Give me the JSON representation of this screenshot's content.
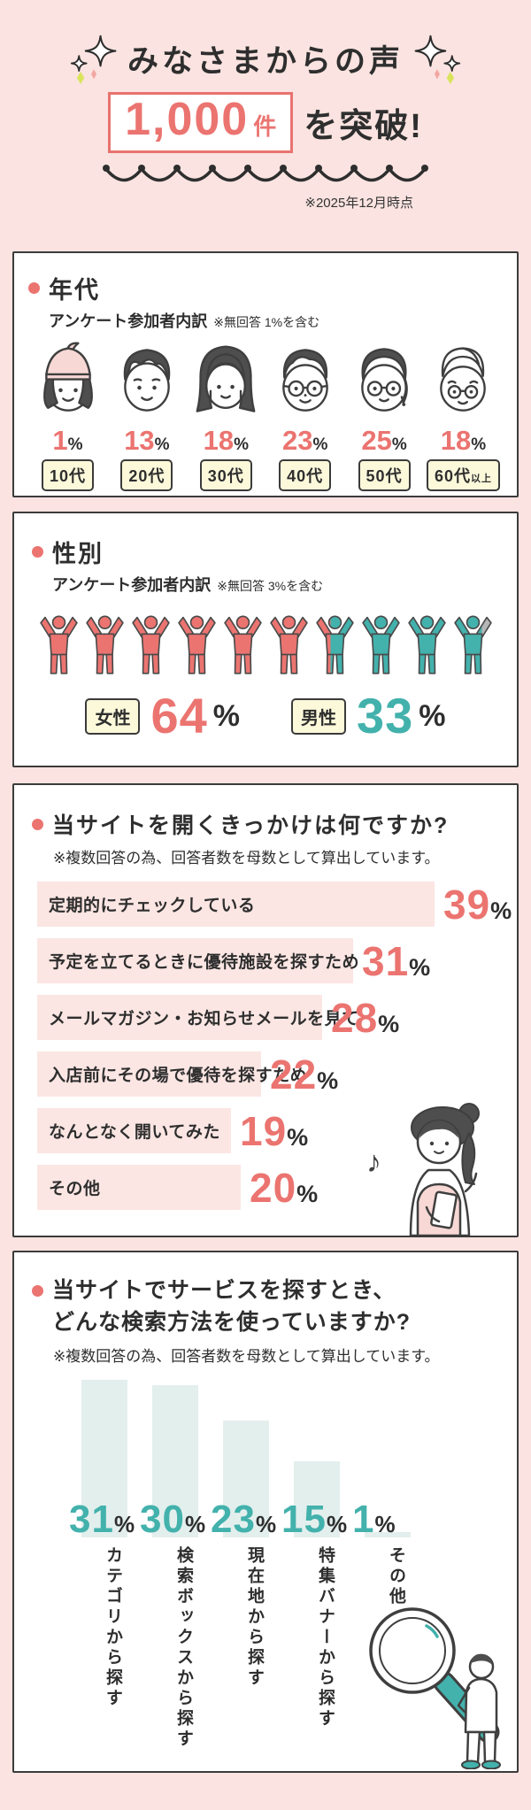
{
  "page": {
    "bg": "#FAE3E0",
    "note_date": "※2025年12月時点"
  },
  "colors": {
    "accent_red": "#EB7470",
    "accent_teal": "#43B1AC",
    "text_dark": "#2E2E2E",
    "bar_pink": "#FBE6E3",
    "bar_mint": "#E3EFED",
    "tag_yellow": "#FCF9DB",
    "no_answer_gray": "#B5B6B6",
    "count_box_border": "#E8736F"
  },
  "header": {
    "title": "みなさまからの声",
    "count": "1,000",
    "count_unit": "件",
    "suffix": "を突破!"
  },
  "age": {
    "title": "年代",
    "subtitle": "アンケート参加者内訳",
    "note": "※無回答 1%を含む",
    "unit": "%",
    "items": [
      {
        "label": "10代",
        "label_suffix": "",
        "pct": 1,
        "icon": "teen-girl"
      },
      {
        "label": "20代",
        "label_suffix": "",
        "pct": 13,
        "icon": "young-man"
      },
      {
        "label": "30代",
        "label_suffix": "",
        "pct": 18,
        "icon": "woman-long-hair"
      },
      {
        "label": "40代",
        "label_suffix": "",
        "pct": 23,
        "icon": "man-glasses"
      },
      {
        "label": "50代",
        "label_suffix": "",
        "pct": 25,
        "icon": "woman-glasses"
      },
      {
        "label": "60代",
        "label_suffix": "以上",
        "pct": 18,
        "icon": "senior-man"
      }
    ]
  },
  "gender": {
    "title": "性別",
    "subtitle": "アンケート参加者内訳",
    "note": "※無回答 3%を含む",
    "unit": "%",
    "figure_count": 10,
    "groups": [
      {
        "label": "女性",
        "pct": 64,
        "color": "#EB7470"
      },
      {
        "label": "男性",
        "pct": 33,
        "color": "#43B1AC"
      }
    ],
    "no_answer_pct": 3,
    "no_answer_color": "#B5B6B6"
  },
  "reasons": {
    "title": "当サイトを開くきっかけは何ですか?",
    "note": "※複数回答の為、回答者数を母数として算出しています。",
    "unit": "%",
    "bars": [
      {
        "label": "定期的にチェックしている",
        "pct": 39
      },
      {
        "label": "予定を立てるときに優待施設を探すため",
        "pct": 31
      },
      {
        "label": "メールマガジン・お知らせメールを見て",
        "pct": 28
      },
      {
        "label": "入店前にその場で優待を探すため",
        "pct": 22
      },
      {
        "label": "なんとなく開いてみた",
        "pct": 19
      },
      {
        "label": "その他",
        "pct": 20
      }
    ]
  },
  "search": {
    "title_line1": "当サイトでサービスを探すとき、",
    "title_line2": "どんな検索方法を使っていますか?",
    "note": "※複数回答の為、回答者数を母数として算出しています。",
    "unit": "%",
    "bars": [
      {
        "label": "カテゴリから探す",
        "pct": 31
      },
      {
        "label": "検索ボックスから探す",
        "pct": 30
      },
      {
        "label": "現在地から探す",
        "pct": 23
      },
      {
        "label": "特集バナーから探す",
        "pct": 15
      },
      {
        "label": "その他",
        "pct": 1
      }
    ]
  },
  "chart_data": [
    {
      "type": "bar",
      "style": "pictograph-faces",
      "title": "年代 アンケート参加者内訳",
      "note": "※無回答 1%を含む",
      "categories": [
        "10代",
        "20代",
        "30代",
        "40代",
        "50代",
        "60代以上"
      ],
      "values": [
        1,
        13,
        18,
        23,
        25,
        18
      ],
      "unit": "%"
    },
    {
      "type": "bar",
      "style": "pictograph-people",
      "title": "性別 アンケート参加者内訳",
      "note": "※無回答 3%を含む",
      "categories": [
        "女性",
        "男性"
      ],
      "values": [
        64,
        33
      ],
      "unit": "%"
    },
    {
      "type": "bar",
      "orientation": "horizontal",
      "title": "当サイトを開くきっかけは何ですか?",
      "note": "※複数回答の為、回答者数を母数として算出しています。",
      "categories": [
        "定期的にチェックしている",
        "予定を立てるときに優待施設を探すため",
        "メールマガジン・お知らせメールを見て",
        "入店前にその場で優待を探すため",
        "なんとなく開いてみた",
        "その他"
      ],
      "values": [
        39,
        31,
        28,
        22,
        19,
        20
      ],
      "unit": "%"
    },
    {
      "type": "bar",
      "orientation": "vertical",
      "title": "当サイトでサービスを探すとき、どんな検索方法を使っていますか?",
      "note": "※複数回答の為、回答者数を母数として算出しています。",
      "categories": [
        "カテゴリから探す",
        "検索ボックスから探す",
        "現在地から探す",
        "特集バナーから探す",
        "その他"
      ],
      "values": [
        31,
        30,
        23,
        15,
        1
      ],
      "unit": "%"
    }
  ]
}
